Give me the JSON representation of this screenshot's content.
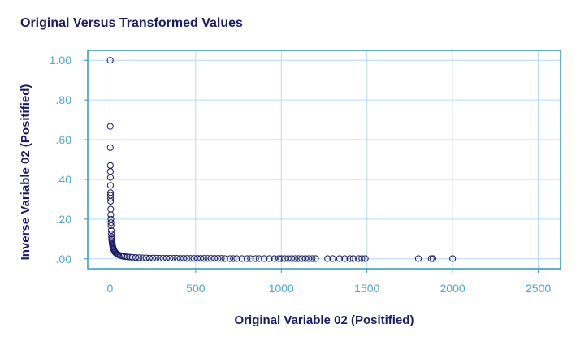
{
  "colors": {
    "frame": "#2f9ab8",
    "grid": "#b3dceb",
    "tick_text": "#4aa8c7",
    "title_text": "#1a1a66",
    "marker": "#1a1a66"
  },
  "chart_data": {
    "type": "scatter",
    "title": "Original Versus Transformed Values",
    "xlabel": "Original Variable 02 (Positified)",
    "ylabel": "Inverse Variable 02 (Positified)",
    "xlim": [
      -130,
      2630
    ],
    "ylim": [
      -0.05,
      1.05
    ],
    "grid": true,
    "x_ticks": [
      0,
      500,
      1000,
      1500,
      2000,
      2500
    ],
    "x_tick_labels": [
      "0",
      "500",
      "1000",
      "1500",
      "2000",
      "2500"
    ],
    "y_ticks": [
      0,
      0.2,
      0.4,
      0.6,
      0.8,
      1.0
    ],
    "y_tick_labels": [
      ".00",
      ".20",
      ".40",
      ".60",
      ".80",
      "1.00"
    ],
    "marker": "open-circle",
    "points": [
      [
        1,
        1.0
      ],
      [
        1.5,
        0.667
      ],
      [
        1.8,
        0.56
      ],
      [
        2.1,
        0.47
      ],
      [
        2.3,
        0.44
      ],
      [
        2.5,
        0.41
      ],
      [
        2.7,
        0.37
      ],
      [
        3,
        0.333
      ],
      [
        3.1,
        0.32
      ],
      [
        3.3,
        0.305
      ],
      [
        3.5,
        0.29
      ],
      [
        4,
        0.25
      ],
      [
        4.5,
        0.222
      ],
      [
        5,
        0.2
      ],
      [
        5.5,
        0.182
      ],
      [
        6,
        0.167
      ],
      [
        7,
        0.143
      ],
      [
        8,
        0.125
      ],
      [
        9,
        0.111
      ],
      [
        10,
        0.1
      ],
      [
        11,
        0.091
      ],
      [
        12,
        0.083
      ],
      [
        13,
        0.077
      ],
      [
        14,
        0.071
      ],
      [
        15,
        0.067
      ],
      [
        17,
        0.059
      ],
      [
        19,
        0.053
      ],
      [
        21,
        0.048
      ],
      [
        24,
        0.042
      ],
      [
        27,
        0.037
      ],
      [
        30,
        0.033
      ],
      [
        35,
        0.029
      ],
      [
        40,
        0.025
      ],
      [
        45,
        0.022
      ],
      [
        50,
        0.02
      ],
      [
        60,
        0.017
      ],
      [
        70,
        0.014
      ],
      [
        80,
        0.013
      ],
      [
        90,
        0.011
      ],
      [
        100,
        0.01
      ],
      [
        115,
        0.009
      ],
      [
        130,
        0.008
      ],
      [
        150,
        0.007
      ],
      [
        170,
        0.006
      ],
      [
        190,
        0.005
      ],
      [
        210,
        0.005
      ],
      [
        230,
        0.004
      ],
      [
        250,
        0.004
      ],
      [
        270,
        0.004
      ],
      [
        290,
        0.003
      ],
      [
        310,
        0.003
      ],
      [
        330,
        0.003
      ],
      [
        350,
        0.003
      ],
      [
        370,
        0.003
      ],
      [
        390,
        0.003
      ],
      [
        410,
        0.002
      ],
      [
        430,
        0.002
      ],
      [
        450,
        0.002
      ],
      [
        470,
        0.002
      ],
      [
        490,
        0.002
      ],
      [
        510,
        0.002
      ],
      [
        530,
        0.002
      ],
      [
        550,
        0.002
      ],
      [
        570,
        0.002
      ],
      [
        590,
        0.002
      ],
      [
        610,
        0.002
      ],
      [
        630,
        0.002
      ],
      [
        650,
        0.002
      ],
      [
        670,
        0.001
      ],
      [
        700,
        0.001
      ],
      [
        720,
        0.001
      ],
      [
        740,
        0.001
      ],
      [
        770,
        0.001
      ],
      [
        800,
        0.001
      ],
      [
        820,
        0.001
      ],
      [
        850,
        0.001
      ],
      [
        870,
        0.001
      ],
      [
        900,
        0.001
      ],
      [
        930,
        0.001
      ],
      [
        960,
        0.001
      ],
      [
        985,
        0.001
      ],
      [
        1000,
        0.001
      ],
      [
        1020,
        0.001
      ],
      [
        1040,
        0.001
      ],
      [
        1060,
        0.001
      ],
      [
        1080,
        0.001
      ],
      [
        1100,
        0.001
      ],
      [
        1120,
        0.001
      ],
      [
        1140,
        0.001
      ],
      [
        1160,
        0.001
      ],
      [
        1180,
        0.001
      ],
      [
        1200,
        0.001
      ],
      [
        1270,
        0.001
      ],
      [
        1300,
        0.001
      ],
      [
        1340,
        0.001
      ],
      [
        1370,
        0.001
      ],
      [
        1400,
        0.001
      ],
      [
        1420,
        0.001
      ],
      [
        1450,
        0.001
      ],
      [
        1470,
        0.001
      ],
      [
        1490,
        0.001
      ],
      [
        1800,
        0.001
      ],
      [
        1875,
        0.001
      ],
      [
        1885,
        0.001
      ],
      [
        2000,
        0.001
      ]
    ]
  }
}
